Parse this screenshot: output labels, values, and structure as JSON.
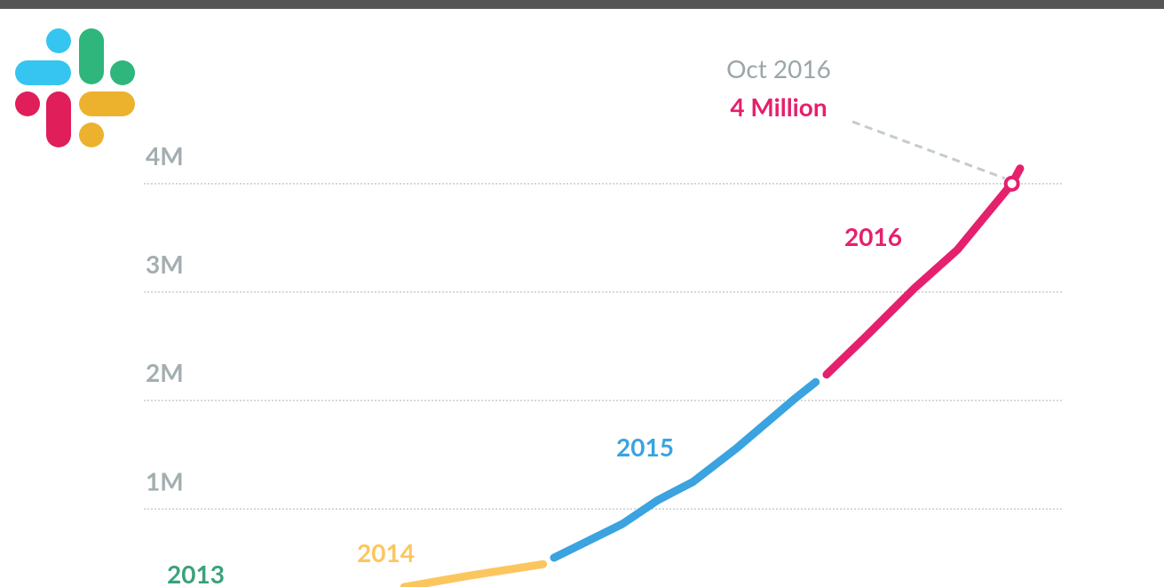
{
  "chart_data": {
    "type": "line",
    "xlim": [
      2013.515,
      2016.89
    ],
    "ylim": [
      280000,
      4400000
    ],
    "yticks": [
      {
        "value": 1000000,
        "label": "1M"
      },
      {
        "value": 2000000,
        "label": "2M"
      },
      {
        "value": 3000000,
        "label": "3M"
      },
      {
        "value": 4000000,
        "label": "4M"
      }
    ],
    "grid": true,
    "series": [
      {
        "name": "2013",
        "color": "#3aa27a",
        "x": [],
        "values": []
      },
      {
        "name": "2014",
        "color": "#fcc65e",
        "x": [
          2014.47,
          2014.71,
          2014.98
        ],
        "values": [
          280000,
          385000,
          490000
        ]
      },
      {
        "name": "2015",
        "color": "#3aa3e0",
        "x": [
          2015.02,
          2015.27,
          2015.4,
          2015.53,
          2015.69,
          2015.9,
          2015.98
        ],
        "values": [
          550000,
          860000,
          1080000,
          1250000,
          1560000,
          2010000,
          2170000
        ]
      },
      {
        "name": "2016",
        "color": "#e5206d",
        "x": [
          2016.02,
          2016.16,
          2016.34,
          2016.5,
          2016.7,
          2016.73
        ],
        "values": [
          2240000,
          2580000,
          3030000,
          3390000,
          4000000,
          4140000
        ]
      }
    ],
    "annotation": {
      "title": "Oct 2016",
      "text": "4 Million",
      "x": 2016.7,
      "y": 4000000
    }
  }
}
